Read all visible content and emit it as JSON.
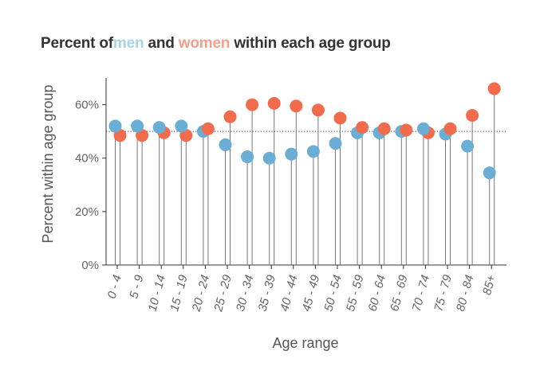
{
  "title": {
    "prefix": "Percent of",
    "men": "men",
    "and": "and",
    "women": "women",
    "suffix": "within each age group"
  },
  "colors": {
    "men": "#6AAED6",
    "women": "#F36B4D",
    "men_title": "#A6D4E6",
    "women_title": "#F4A08A"
  },
  "chart_data": {
    "type": "scatter",
    "style": "lollipop",
    "title": "Percent of men and women within each age group",
    "xlabel": "Age range",
    "ylabel": "Percent within age group",
    "ylim": [
      0,
      70
    ],
    "yticks": [
      0,
      20,
      40,
      60
    ],
    "ytick_labels": [
      "0%",
      "20%",
      "40%",
      "60%"
    ],
    "reference_line": 50,
    "categories": [
      "0 - 4",
      "5 - 9",
      "10 - 14",
      "15 - 19",
      "20 - 24",
      "25 - 29",
      "30 - 34",
      "35 - 39",
      "40 - 44",
      "45 - 49",
      "50 - 54",
      "55 - 59",
      "60 - 64",
      "65 - 69",
      "70 - 74",
      "75 - 79",
      "80 - 84",
      "85+"
    ],
    "series": [
      {
        "name": "men",
        "values": [
          52,
          52,
          51.5,
          52,
          50,
          45,
          40.5,
          40,
          41.5,
          42.5,
          45.5,
          49.5,
          49.5,
          50,
          51,
          49,
          44.5,
          34.5
        ]
      },
      {
        "name": "women",
        "values": [
          48.5,
          48.5,
          49.5,
          48.5,
          51,
          55.5,
          60,
          60.5,
          59.5,
          58,
          55,
          51.5,
          51,
          50.5,
          49.5,
          51,
          56,
          66
        ]
      }
    ]
  }
}
